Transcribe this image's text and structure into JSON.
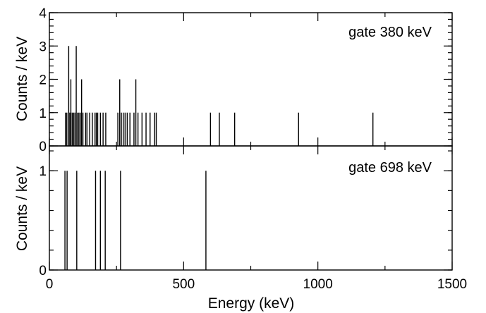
{
  "chart_data": [
    {
      "type": "bar",
      "annotation": "gate 380 keV",
      "ylabel": "Counts / keV",
      "xlim": [
        0,
        1500
      ],
      "ylim": [
        0,
        4
      ],
      "yticks": [
        "0",
        "1",
        "2",
        "3",
        "4"
      ],
      "x": [
        60,
        65,
        72,
        76,
        80,
        85,
        90,
        95,
        100,
        105,
        110,
        115,
        120,
        125,
        135,
        140,
        150,
        160,
        170,
        175,
        180,
        190,
        200,
        210,
        255,
        262,
        268,
        275,
        282,
        290,
        300,
        315,
        322,
        330,
        345,
        360,
        375,
        392,
        398,
        600,
        633,
        690,
        928,
        1205
      ],
      "values": [
        1,
        1,
        3,
        1,
        2,
        1,
        1,
        1,
        3,
        1,
        1,
        1,
        2,
        1,
        1,
        1,
        1,
        1,
        1,
        1,
        1,
        1,
        1,
        1,
        1,
        2,
        1,
        1,
        1,
        1,
        1,
        1,
        2,
        1,
        1,
        1,
        1,
        1,
        1,
        1,
        1,
        1,
        1,
        1
      ]
    },
    {
      "type": "bar",
      "annotation": "gate 698 keV",
      "ylabel": "Counts / keV",
      "xlabel": "Energy (keV)",
      "xlim": [
        0,
        1500
      ],
      "ylim": [
        0,
        1.25
      ],
      "yticks": [
        "0",
        "1"
      ],
      "xticks": [
        "0",
        "500",
        "1000",
        "1500"
      ],
      "x": [
        58,
        66,
        102,
        172,
        190,
        208,
        265,
        583
      ],
      "values": [
        1,
        1,
        1,
        1,
        1,
        1,
        1,
        1
      ]
    }
  ]
}
